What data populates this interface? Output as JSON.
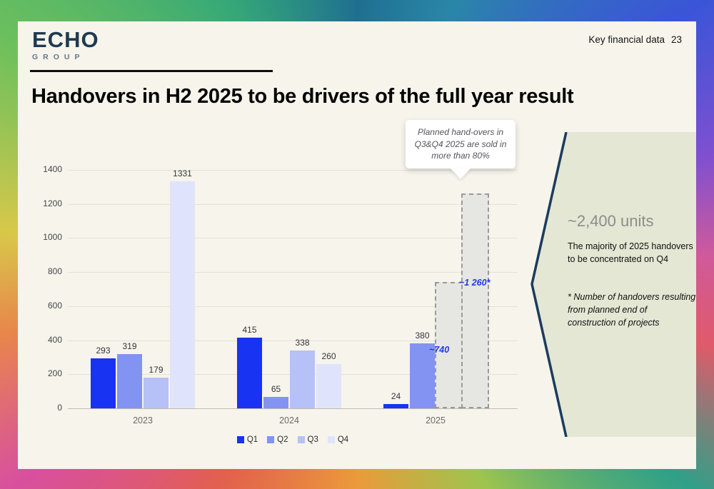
{
  "header": {
    "logo_primary": "ECHO",
    "logo_secondary": "GROUP",
    "page_label": "Key financial data",
    "page_number": "23"
  },
  "title": "Handovers in H2 2025 to be drivers of the full year result",
  "callout": {
    "text": "Planned hand-overs in Q3&Q4 2025 are sold in more than 80%"
  },
  "side_panel": {
    "headline": "~2,400 units",
    "subtext": "The majority of 2025 handovers to be concentrated on Q4",
    "footnote": "* Number of handovers resulting from planned end of construction of projects",
    "fill_color": "#e3e7d3",
    "border_color": "#1c3c5e"
  },
  "chart_data": {
    "type": "bar",
    "title": "",
    "categories": [
      "2023",
      "2024",
      "2025"
    ],
    "series": [
      {
        "name": "Q1",
        "color": "#1833f2",
        "values": [
          293,
          415,
          24
        ]
      },
      {
        "name": "Q2",
        "color": "#8293f1",
        "values": [
          319,
          65,
          380
        ]
      },
      {
        "name": "Q3",
        "color": "#b6c1f7",
        "values": [
          179,
          338,
          null
        ]
      },
      {
        "name": "Q4",
        "color": "#dfe4fc",
        "values": [
          1331,
          260,
          null
        ]
      }
    ],
    "planned_bars": [
      {
        "category": "2025",
        "series": "Q3",
        "value": 740,
        "label": "~740"
      },
      {
        "category": "2025",
        "series": "Q4",
        "value": 1260,
        "label": "~1 260*"
      }
    ],
    "planned_label_color": "#2438e8",
    "ylim": [
      0,
      1400
    ],
    "ytick_step": 200,
    "grid": true,
    "legend_position": "bottom"
  }
}
